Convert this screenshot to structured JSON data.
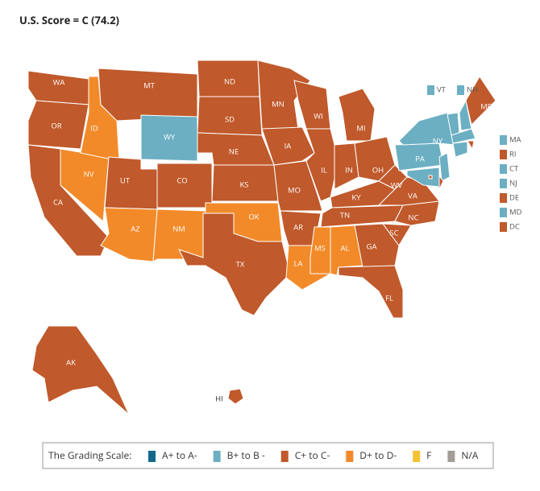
{
  "title": "U.S. Score = C (74.2)",
  "legend": {
    "title": "The Grading Scale:",
    "items": [
      {
        "label": "A+ to A-",
        "color": "#13698a"
      },
      {
        "label": "B+ to B -",
        "color": "#6cafc3"
      },
      {
        "label": "C+ to C-",
        "color": "#c0592b"
      },
      {
        "label": "D+ to D-",
        "color": "#f28a29"
      },
      {
        "label": "F",
        "color": "#f5c232"
      },
      {
        "label": "N/A",
        "color": "#a29d96"
      }
    ]
  },
  "states": [
    {
      "abbr": "WA",
      "grade": "C+ to C-"
    },
    {
      "abbr": "OR",
      "grade": "C+ to C-"
    },
    {
      "abbr": "CA",
      "grade": "C+ to C-"
    },
    {
      "abbr": "NV",
      "grade": "D+ to D-"
    },
    {
      "abbr": "ID",
      "grade": "D+ to D-"
    },
    {
      "abbr": "MT",
      "grade": "C+ to C-"
    },
    {
      "abbr": "WY",
      "grade": "B+ to B -"
    },
    {
      "abbr": "UT",
      "grade": "C+ to C-"
    },
    {
      "abbr": "CO",
      "grade": "C+ to C-"
    },
    {
      "abbr": "AZ",
      "grade": "D+ to D-"
    },
    {
      "abbr": "NM",
      "grade": "D+ to D-"
    },
    {
      "abbr": "ND",
      "grade": "C+ to C-"
    },
    {
      "abbr": "SD",
      "grade": "C+ to C-"
    },
    {
      "abbr": "NE",
      "grade": "C+ to C-"
    },
    {
      "abbr": "KS",
      "grade": "C+ to C-"
    },
    {
      "abbr": "OK",
      "grade": "D+ to D-"
    },
    {
      "abbr": "TX",
      "grade": "C+ to C-"
    },
    {
      "abbr": "MN",
      "grade": "C+ to C-"
    },
    {
      "abbr": "IA",
      "grade": "C+ to C-"
    },
    {
      "abbr": "MO",
      "grade": "C+ to C-"
    },
    {
      "abbr": "AR",
      "grade": "C+ to C-"
    },
    {
      "abbr": "LA",
      "grade": "D+ to D-"
    },
    {
      "abbr": "WI",
      "grade": "C+ to C-"
    },
    {
      "abbr": "IL",
      "grade": "C+ to C-"
    },
    {
      "abbr": "MI",
      "grade": "C+ to C-"
    },
    {
      "abbr": "IN",
      "grade": "C+ to C-"
    },
    {
      "abbr": "OH",
      "grade": "C+ to C-"
    },
    {
      "abbr": "KY",
      "grade": "C+ to C-"
    },
    {
      "abbr": "TN",
      "grade": "C+ to C-"
    },
    {
      "abbr": "MS",
      "grade": "D+ to D-"
    },
    {
      "abbr": "AL",
      "grade": "D+ to D-"
    },
    {
      "abbr": "GA",
      "grade": "C+ to C-"
    },
    {
      "abbr": "FL",
      "grade": "C+ to C-"
    },
    {
      "abbr": "SC",
      "grade": "C+ to C-"
    },
    {
      "abbr": "NC",
      "grade": "C+ to C-"
    },
    {
      "abbr": "VA",
      "grade": "C+ to C-"
    },
    {
      "abbr": "WV",
      "grade": "C+ to C-"
    },
    {
      "abbr": "PA",
      "grade": "B+ to B -"
    },
    {
      "abbr": "NY",
      "grade": "B+ to B -"
    },
    {
      "abbr": "VT",
      "grade": "B+ to B -"
    },
    {
      "abbr": "NH",
      "grade": "B+ to B -"
    },
    {
      "abbr": "ME",
      "grade": "C+ to C-"
    },
    {
      "abbr": "MA",
      "grade": "B+ to B -"
    },
    {
      "abbr": "RI",
      "grade": "C+ to C-"
    },
    {
      "abbr": "CT",
      "grade": "B+ to B -"
    },
    {
      "abbr": "NJ",
      "grade": "B+ to B -"
    },
    {
      "abbr": "DE",
      "grade": "C+ to C-"
    },
    {
      "abbr": "MD",
      "grade": "B+ to B -"
    },
    {
      "abbr": "DC",
      "grade": "C+ to C-"
    },
    {
      "abbr": "AK",
      "grade": "C+ to C-"
    },
    {
      "abbr": "HI",
      "grade": "C+ to C-"
    }
  ]
}
